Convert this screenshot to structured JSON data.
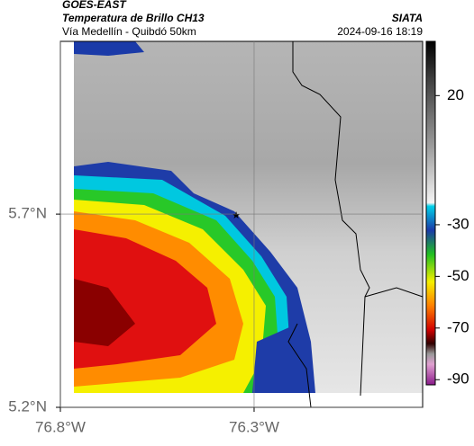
{
  "header": {
    "satellite": "GOES-EAST",
    "title": "Temperatura de Brillo CH13",
    "subtitle": "Vía Medellín - Quibdó 50km",
    "source": "SIATA",
    "datetime": "2024-09-16 18:19"
  },
  "map": {
    "xlim": [
      -76.8,
      -75.865
    ],
    "ylim": [
      5.2,
      6.147
    ],
    "xticks": [
      {
        "value": -76.8,
        "label": "76.8°W"
      },
      {
        "value": -76.3,
        "label": "76.3°W"
      }
    ],
    "yticks": [
      {
        "value": 5.2,
        "label": "5.2°N"
      },
      {
        "value": 5.7,
        "label": "5.7°N"
      }
    ],
    "grid": true
  },
  "colorbar": {
    "lim": [
      -92,
      41
    ],
    "ticks": [
      20,
      -30,
      -50,
      -70,
      -90
    ]
  }
}
